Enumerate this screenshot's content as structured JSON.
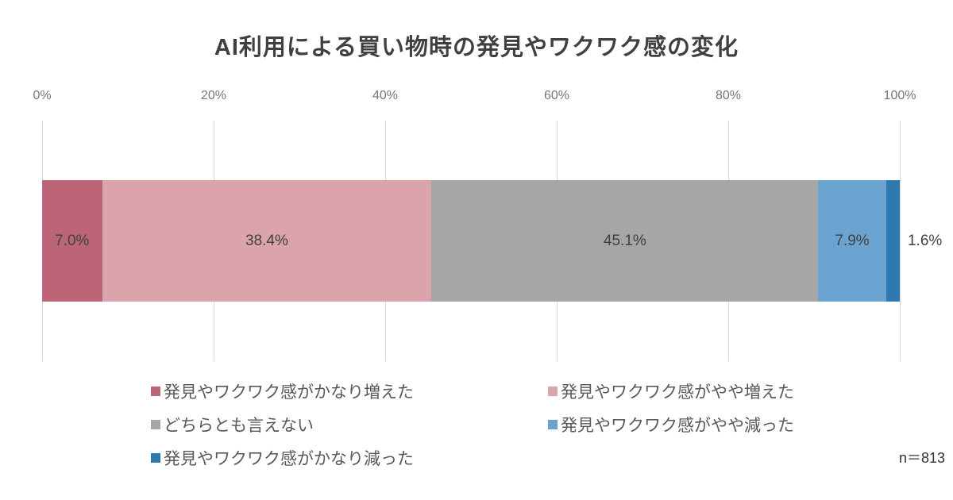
{
  "title": "AI利用による買い物時の発見やワクワク感の変化",
  "note": "n＝813",
  "chart_data": {
    "type": "bar",
    "variant": "horizontal-stacked",
    "title": "AI利用による買い物時の発見やワクワク感の変化",
    "x_axis": {
      "position": "top",
      "range": [
        0,
        100
      ],
      "unit": "%",
      "ticks": [
        "0%",
        "20%",
        "40%",
        "60%",
        "80%",
        "100%"
      ],
      "grid": true
    },
    "series": [
      {
        "name": "発見やワクワク感がかなり増えた",
        "value": 7.0,
        "label": "7.0%",
        "color": "#bc6478",
        "label_position": "inside"
      },
      {
        "name": "発見やワクワク感がやや増えた",
        "value": 38.4,
        "label": "38.4%",
        "color": "#dba3ac",
        "label_position": "inside"
      },
      {
        "name": "どちらとも言えない",
        "value": 45.1,
        "label": "45.1%",
        "color": "#a6a6a6",
        "label_position": "inside"
      },
      {
        "name": "発見やワクワク感がやや減った",
        "value": 7.9,
        "label": "7.9%",
        "color": "#6ba3d0",
        "label_position": "inside"
      },
      {
        "name": "発見やワクワク感がかなり減った",
        "value": 1.6,
        "label": "1.6%",
        "color": "#2e7ab0",
        "label_position": "outside-right"
      }
    ],
    "legend": {
      "position": "bottom",
      "columns": 2
    },
    "sample_size": "n＝813",
    "colors": {
      "title_text": "#404040",
      "tick_text": "#757575",
      "data_label_text": "#404040",
      "legend_text": "#595959",
      "gridline": "#d9d9d9",
      "background": "#ffffff"
    }
  }
}
